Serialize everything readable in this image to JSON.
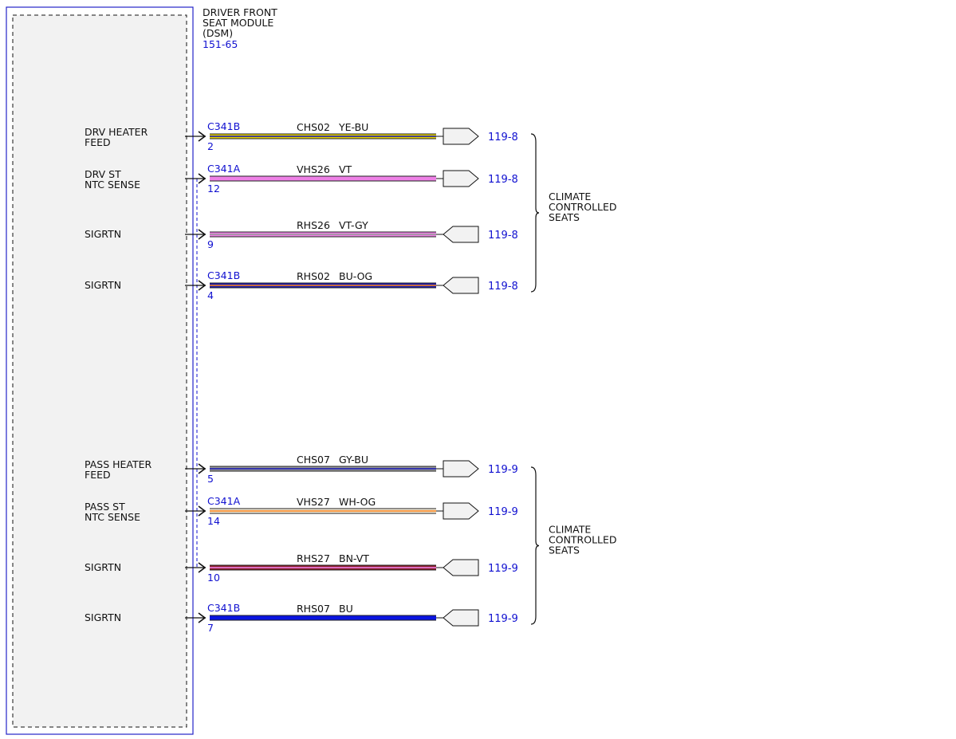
{
  "module": {
    "title_lines": [
      "DRIVER FRONT",
      "SEAT MODULE",
      "(DSM)"
    ],
    "ref": "151-65",
    "fill": "#f2f2f2",
    "border_color": "#2323c8"
  },
  "circuits": [
    {
      "label": [
        "DRV HEATER",
        "FEED"
      ],
      "connector": "C341B",
      "pin": "2",
      "circuit": "CHS02",
      "wire_color": "YE-BU",
      "colors": [
        "#e8d400",
        "#1b1bb0"
      ],
      "end": "out",
      "page_ref": "119-8"
    },
    {
      "label": [
        "DRV ST",
        "NTC SENSE"
      ],
      "connector": "C341A",
      "pin": "12",
      "circuit": "VHS26",
      "wire_color": "VT",
      "colors": [
        "#ee80e6",
        "#ee80e6"
      ],
      "end": "out",
      "page_ref": "119-8"
    },
    {
      "label": [
        "SIGRTN"
      ],
      "connector": "",
      "pin": "9",
      "circuit": "RHS26",
      "wire_color": "VT-GY",
      "colors": [
        "#ee80e6",
        "#9a9a9a"
      ],
      "end": "in",
      "page_ref": "119-8"
    },
    {
      "label": [
        "SIGRTN"
      ],
      "connector": "C341B",
      "pin": "4",
      "circuit": "RHS02",
      "wire_color": "BU-OG",
      "colors": [
        "#1b1bb0",
        "#f08020"
      ],
      "end": "in",
      "page_ref": "119-8"
    },
    {
      "label": [
        "PASS HEATER",
        "FEED"
      ],
      "connector": "",
      "pin": "5",
      "circuit": "CHS07",
      "wire_color": "GY-BU",
      "colors": [
        "#9a9a9a",
        "#1b1bb0"
      ],
      "end": "out",
      "page_ref": "119-9"
    },
    {
      "label": [
        "PASS ST",
        "NTC SENSE"
      ],
      "connector": "C341A",
      "pin": "14",
      "circuit": "VHS27",
      "wire_color": "WH-OG",
      "colors": [
        "#f7ecd8",
        "#f08020"
      ],
      "end": "out",
      "page_ref": "119-9"
    },
    {
      "label": [
        "SIGRTN"
      ],
      "connector": "",
      "pin": "10",
      "circuit": "RHS27",
      "wire_color": "BN-VT",
      "colors": [
        "#8a1e2a",
        "#ee80e6"
      ],
      "end": "in",
      "page_ref": "119-9"
    },
    {
      "label": [
        "SIGRTN"
      ],
      "connector": "C341B",
      "pin": "7",
      "circuit": "RHS07",
      "wire_color": "BU",
      "colors": [
        "#0a14e0",
        "#0a14e0"
      ],
      "end": "in",
      "page_ref": "119-9"
    }
  ],
  "groups": [
    {
      "label_lines": [
        "CLIMATE",
        "CONTROLLED",
        "SEATS"
      ]
    },
    {
      "label_lines": [
        "CLIMATE",
        "CONTROLLED",
        "SEATS"
      ]
    }
  ]
}
